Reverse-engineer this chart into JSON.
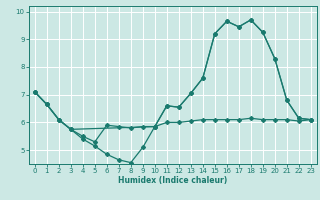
{
  "title": "",
  "xlabel": "Humidex (Indice chaleur)",
  "bg_color": "#cce8e4",
  "grid_color": "#ffffff",
  "line_color": "#1a7a6e",
  "xlim": [
    -0.5,
    23.5
  ],
  "ylim": [
    4.5,
    10.2
  ],
  "yticks": [
    5,
    6,
    7,
    8,
    9,
    10
  ],
  "xticks": [
    0,
    1,
    2,
    3,
    4,
    5,
    6,
    7,
    8,
    9,
    10,
    11,
    12,
    13,
    14,
    15,
    16,
    17,
    18,
    19,
    20,
    21,
    22,
    23
  ],
  "curve1_x": [
    0,
    1,
    2,
    3,
    4,
    5,
    6,
    7,
    8,
    9,
    10,
    11,
    12,
    13,
    14,
    15,
    16,
    17,
    18,
    19,
    20,
    21,
    22,
    23
  ],
  "curve1_y": [
    7.1,
    6.65,
    6.1,
    5.75,
    5.4,
    5.15,
    4.85,
    4.65,
    4.55,
    5.1,
    5.85,
    6.6,
    6.55,
    7.05,
    7.6,
    9.2,
    9.65,
    9.45,
    9.7,
    9.25,
    8.3,
    6.8,
    6.15,
    6.1
  ],
  "curve2_x": [
    0,
    1,
    2,
    3,
    10,
    11,
    12,
    13,
    14,
    15,
    16,
    17,
    18,
    19,
    20,
    21,
    22,
    23
  ],
  "curve2_y": [
    7.1,
    6.65,
    6.1,
    5.75,
    5.85,
    6.6,
    6.55,
    7.05,
    7.6,
    9.2,
    9.65,
    9.45,
    9.7,
    9.25,
    8.3,
    6.8,
    6.15,
    6.1
  ],
  "curve3_x": [
    0,
    1,
    2,
    3,
    4,
    5,
    6,
    7,
    8,
    9,
    10,
    11,
    12,
    13,
    14,
    15,
    16,
    17,
    18,
    19,
    20,
    21,
    22,
    23
  ],
  "curve3_y": [
    7.1,
    6.65,
    6.1,
    5.75,
    5.5,
    5.3,
    5.9,
    5.85,
    5.8,
    5.85,
    5.85,
    6.0,
    6.0,
    6.05,
    6.1,
    6.1,
    6.1,
    6.1,
    6.15,
    6.1,
    6.1,
    6.1,
    6.05,
    6.1
  ]
}
